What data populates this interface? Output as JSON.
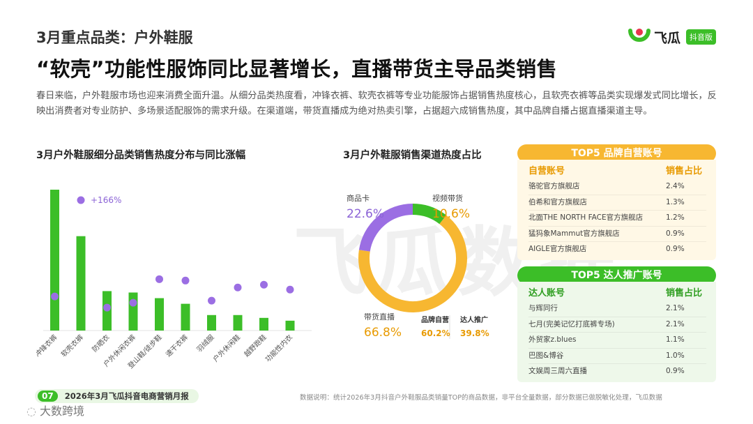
{
  "header": {
    "section_title": "3月重点品类：户外鞋服",
    "headline": "“软壳”功能性服饰同比显著增长，直播带货主导品类销售",
    "intro": "春日来临，户外鞋服市场也迎来消费全面升温。从细分品类热度看，冲锋衣裤、软壳衣裤等专业功能服饰占据销售热度核心，且软壳衣裤等品类实现爆发式同比增长，反映出消费者对专业防护、多场景适配服饰的需求升级。在渠道端，带货直播成为绝对热卖引擎，占据超六成销售热度，其中品牌自播占据直播渠道主导。"
  },
  "logo": {
    "name": "飞瓜",
    "badge": "抖音版"
  },
  "colors": {
    "green": "#3cbe28",
    "purple": "#9b6ee3",
    "orange": "#f7b731",
    "light_green": "#e9f7e4"
  },
  "chart_data": [
    {
      "type": "bar",
      "title": "3月户外鞋服细分品类销售热度分布与同比涨幅",
      "categories": [
        "冲锋衣裤",
        "软壳衣裤",
        "防晒衣",
        "户外休闲衣裤",
        "登山鞋/徒步鞋",
        "速干衣裤",
        "羽绒服",
        "户外休闲鞋",
        "越野跑鞋",
        "功能性内衣"
      ],
      "series": [
        {
          "values": [
            100,
            67,
            28,
            27,
            23,
            19,
            11,
            11,
            9,
            7
          ]
        },
        {
          "values": [
            27,
            166,
            11,
            18,
            52,
            50,
            21,
            40,
            44,
            37
          ]
        }
      ],
      "annotations": [
        {
          "category": "软壳衣裤",
          "text": "+166%"
        }
      ]
    },
    {
      "type": "pie",
      "title": "3月户外鞋服销售渠道热度占比",
      "labels": [
        "商品卡",
        "视频带货",
        "带货直播"
      ],
      "values": [
        22.6,
        10.6,
        66.8
      ],
      "value_labels": [
        "22.6%",
        "10.6%",
        "66.8%"
      ],
      "sub_breakdown": {
        "labels": [
          "品牌自营",
          "达人推广"
        ],
        "values": [
          60.2,
          39.8
        ],
        "value_labels": [
          "60.2%",
          "39.8%"
        ]
      }
    }
  ],
  "panels": {
    "brand": {
      "title": "TOP5 品牌自营账号",
      "col_name": "自营账号",
      "col_share": "销售占比",
      "rows": [
        {
          "name": "骆驼官方旗舰店",
          "share": "2.4%"
        },
        {
          "name": "伯希和官方旗舰店",
          "share": "1.3%"
        },
        {
          "name": "北面THE NORTH FACE官方旗舰店",
          "share": "1.2%"
        },
        {
          "name": "猛犸象Mammut官方旗舰店",
          "share": "0.9%"
        },
        {
          "name": "AIGLE官方旗舰店",
          "share": "0.9%"
        }
      ]
    },
    "creator": {
      "title": "TOP5 达人推广账号",
      "col_name": "达人账号",
      "col_share": "销售占比",
      "rows": [
        {
          "name": "与辉同行",
          "share": "2.1%"
        },
        {
          "name": "七月(完美记忆打底裤专场)",
          "share": "2.1%"
        },
        {
          "name": "外贸家z.blues",
          "share": "1.1%"
        },
        {
          "name": "巴图&博谷",
          "share": "1.0%"
        },
        {
          "name": "文娱周三周六直播",
          "share": "0.9%"
        }
      ]
    }
  },
  "footer": {
    "page_num": "07",
    "report": "2026年3月飞瓜抖音电商营销月报",
    "note": "数据说明：统计2026年3月抖音户外鞋服品类销量TOP的商品数据，非平台全量数据，部分数据已做脱敏化处理，飞瓜数据"
  },
  "watermark": {
    "text": "大数跨境",
    "bg_text": "飞瓜数据"
  }
}
